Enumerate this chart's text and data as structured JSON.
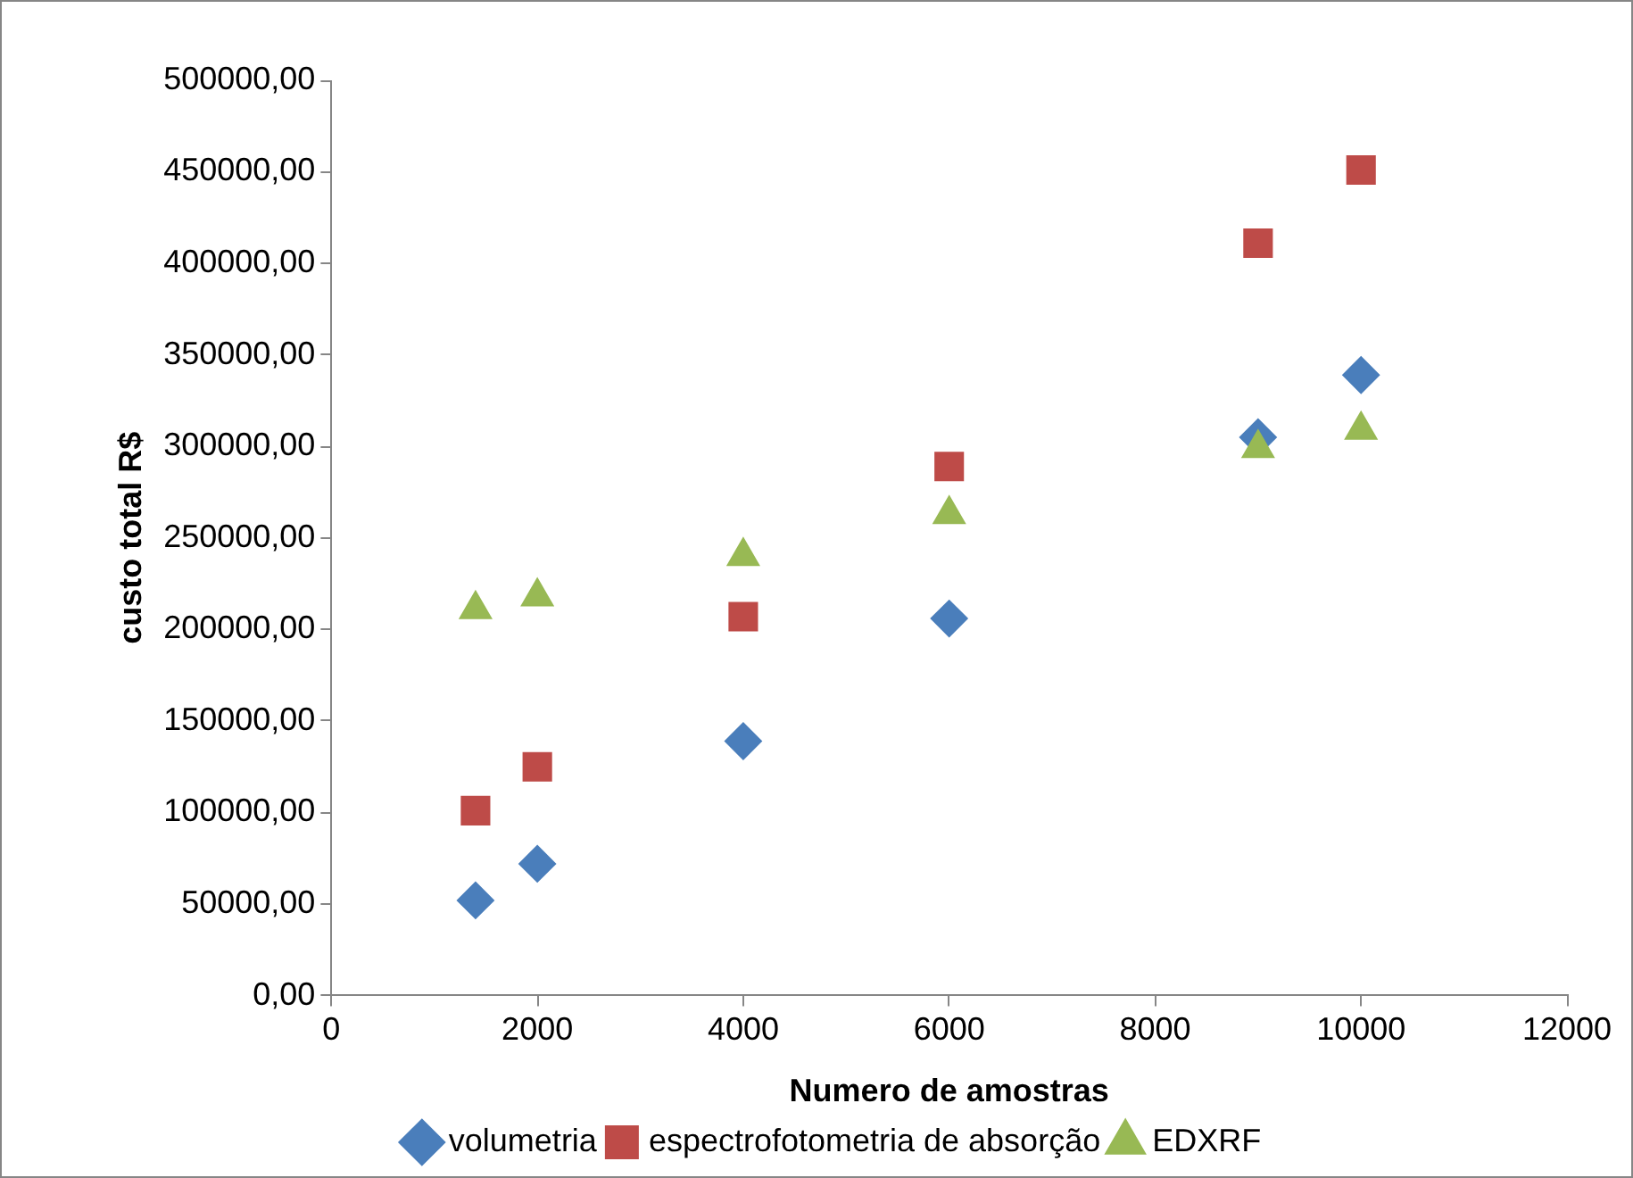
{
  "chart_data": {
    "type": "scatter",
    "xlabel": "Numero de amostras",
    "ylabel": "custo total R$",
    "xlim": [
      0,
      12000
    ],
    "xticks": [
      0,
      2000,
      4000,
      6000,
      8000,
      10000,
      12000
    ],
    "ylim": [
      0,
      500000
    ],
    "yticks": [
      {
        "value": 0,
        "label": "0,00"
      },
      {
        "value": 50000,
        "label": "50000,00"
      },
      {
        "value": 100000,
        "label": "100000,00"
      },
      {
        "value": 150000,
        "label": "150000,00"
      },
      {
        "value": 200000,
        "label": "200000,00"
      },
      {
        "value": 250000,
        "label": "250000,00"
      },
      {
        "value": 300000,
        "label": "300000,00"
      },
      {
        "value": 350000,
        "label": "350000,00"
      },
      {
        "value": 400000,
        "label": "400000,00"
      },
      {
        "value": 450000,
        "label": "450000,00"
      },
      {
        "value": 500000,
        "label": "500000,00"
      }
    ],
    "grid": false,
    "legend": "bottom",
    "series": [
      {
        "name": "volumetria",
        "color": "#4a7ebb",
        "marker": "diamond",
        "x": [
          1400,
          2000,
          4000,
          6000,
          9000,
          10000
        ],
        "values": [
          52000,
          72000,
          139000,
          206000,
          305000,
          339000
        ]
      },
      {
        "name": "espectrofotometria de absorção",
        "color": "#be4b48",
        "marker": "square",
        "x": [
          1400,
          2000,
          4000,
          6000,
          9000,
          10000
        ],
        "values": [
          101000,
          125000,
          207000,
          289000,
          411000,
          451000
        ]
      },
      {
        "name": "EDXRF",
        "color": "#98b954",
        "marker": "triangle",
        "x": [
          1400,
          2000,
          4000,
          6000,
          9000,
          10000
        ],
        "values": [
          211000,
          218000,
          240000,
          263000,
          299000,
          309000
        ]
      }
    ]
  }
}
